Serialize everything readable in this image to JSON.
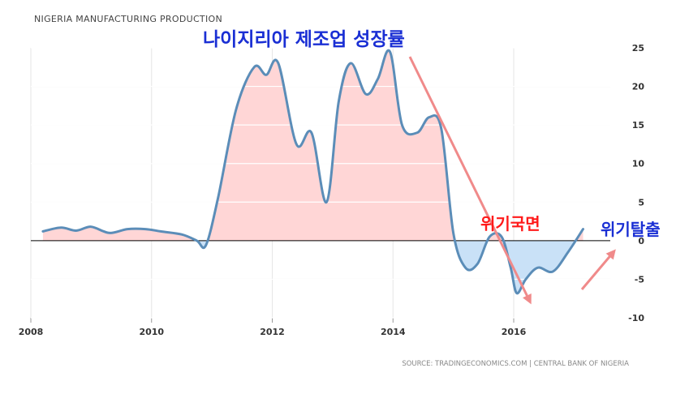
{
  "chart_data": {
    "type": "area",
    "title": "NIGERIA MANUFACTURING PRODUCTION",
    "source": "SOURCE: TRADINGECONOMICS.COM | CENTRAL BANK OF NIGERIA",
    "xlabel": "",
    "ylabel": "",
    "xlim": [
      2008,
      2017.6
    ],
    "ylim": [
      -10,
      25
    ],
    "x_ticks": [
      "2008",
      "2010",
      "2012",
      "2014",
      "2016"
    ],
    "y_ticks": [
      "25",
      "20",
      "15",
      "10",
      "5",
      "0",
      "-5",
      "-10"
    ],
    "grid": true,
    "series": [
      {
        "x": [
          2008.2,
          2008.5,
          2008.75,
          2009.0,
          2009.3,
          2009.6,
          2009.9,
          2010.15,
          2010.5,
          2010.75,
          2010.9,
          2011.1,
          2011.4,
          2011.7,
          2011.9,
          2012.1,
          2012.4,
          2012.65,
          2012.9,
          2013.1,
          2013.3,
          2013.55,
          2013.75,
          2013.95,
          2014.15,
          2014.4,
          2014.6,
          2014.8,
          2015.0,
          2015.2,
          2015.4,
          2015.6,
          2015.8,
          2015.95,
          2016.05,
          2016.2,
          2016.4,
          2016.65,
          2016.9,
          2017.15
        ],
        "y": [
          1.2,
          1.7,
          1.3,
          1.8,
          1.0,
          1.5,
          1.5,
          1.2,
          0.8,
          0.0,
          -0.6,
          5.5,
          17.0,
          22.5,
          21.5,
          23.0,
          12.5,
          14.0,
          5.0,
          18.0,
          23.0,
          19.0,
          21.0,
          24.5,
          15.0,
          14.0,
          16.0,
          14.5,
          1.0,
          -3.5,
          -3.0,
          0.5,
          0.5,
          -3.5,
          -6.8,
          -5.0,
          -3.5,
          -4.0,
          -1.5,
          1.5
        ]
      }
    ],
    "annotations": {
      "title_ko": "나이지리아 제조업 성장률",
      "crisis": "위기국면",
      "escape": "위기탈출"
    },
    "colors": {
      "line": "#5b8db8",
      "positive_fill": "#ffd6d6",
      "negative_fill": "#c9e1f7",
      "arrow": "#f08a8a",
      "zero_line": "#000000",
      "grid": "#e6e6e6"
    }
  }
}
